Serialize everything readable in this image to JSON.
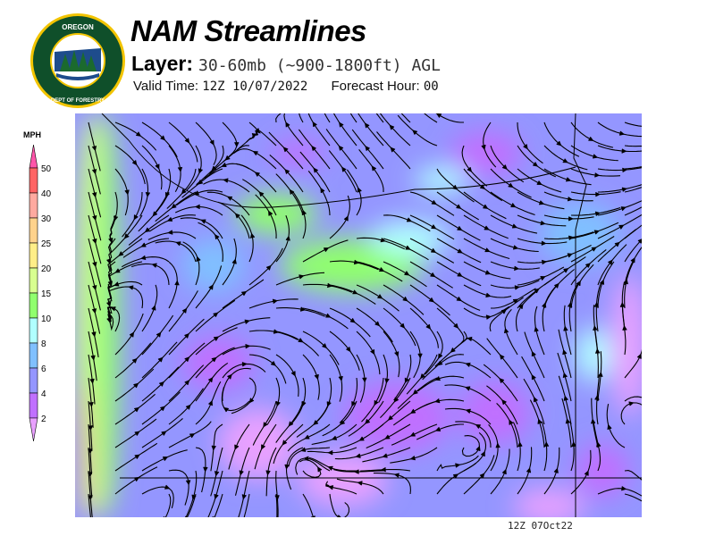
{
  "header": {
    "logo_text_top": "OREGON",
    "logo_text_bottom": "DEPARTMENT OF FORESTRY",
    "title": "NAM Streamlines",
    "layer_label": "Layer:",
    "layer_value": "30-60mb (~900-1800ft) AGL",
    "valid_label": "Valid Time:",
    "valid_value": "12Z 10/07/2022",
    "forecast_label": "Forecast Hour:",
    "forecast_value": "00"
  },
  "legend": {
    "unit": "MPH",
    "levels": [
      {
        "label": "50",
        "color": "#ff6464"
      },
      {
        "label": "40",
        "color": "#ffaaa0"
      },
      {
        "label": "30",
        "color": "#ffd28c"
      },
      {
        "label": "25",
        "color": "#ffee88"
      },
      {
        "label": "20",
        "color": "#d8ff90"
      },
      {
        "label": "15",
        "color": "#90ff6e"
      },
      {
        "label": "10",
        "color": "#b0ffff"
      },
      {
        "label": "8",
        "color": "#80c0ff"
      },
      {
        "label": "6",
        "color": "#9496ff"
      },
      {
        "label": "4",
        "color": "#c070ff"
      },
      {
        "label": "2",
        "color": "#e8a0ff"
      }
    ],
    "top_arrow_color": "#ff55aa"
  },
  "footer": {
    "timestamp": "12Z 07Oct22"
  }
}
